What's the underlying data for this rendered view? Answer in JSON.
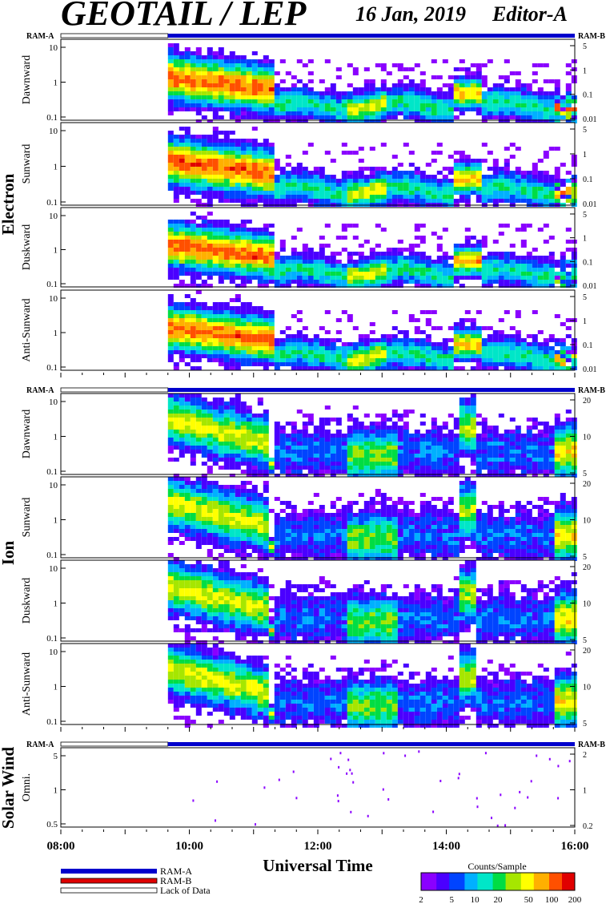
{
  "header": {
    "title": "GEOTAIL / LEP",
    "date": "16 Jan, 2019",
    "editor": "Editor-A"
  },
  "ram_labels": {
    "left": "RAM-A",
    "right": "RAM-B"
  },
  "groups": {
    "electron": "Electron",
    "ion": "Ion",
    "solar_wind": "Solar Wind"
  },
  "x_axis": {
    "title": "Universal Time",
    "ticks": [
      "08:00",
      "10:00",
      "12:00",
      "14:00",
      "16:00"
    ]
  },
  "legend": {
    "ram_a": "RAM-A",
    "ram_b": "RAM-B",
    "lack": "Lack of Data",
    "colorbar_title": "Counts/Sample",
    "colorbar_ticks": [
      "2",
      "5",
      "10",
      "20",
      "50",
      "100",
      "200"
    ]
  },
  "colors": {
    "ram_a": "#0000cc",
    "ram_b": "#dd0000",
    "colormap": [
      "#8a00ff",
      "#4a00ff",
      "#0044ff",
      "#00b0ff",
      "#00e6c8",
      "#00dd44",
      "#a6e600",
      "#ffff00",
      "#ffb000",
      "#ff5000",
      "#e00000"
    ]
  },
  "chart_data": {
    "type": "heatmap",
    "x_range": [
      "08:00",
      "16:00"
    ],
    "data_start": "09:40",
    "ram_a_interval": [
      "09:40",
      "16:00"
    ],
    "panels": [
      {
        "group": "Electron",
        "label": "Dawnward",
        "left_ticks": [
          "10",
          "1",
          "0.1"
        ],
        "right_ticks": [
          "5",
          "1",
          "0.1",
          "0.01"
        ],
        "ylog": true
      },
      {
        "group": "Electron",
        "label": "Sunward",
        "left_ticks": [
          "10",
          "1",
          "0.1"
        ],
        "right_ticks": [
          "5",
          "1",
          "0.1",
          "0.01"
        ],
        "ylog": true
      },
      {
        "group": "Electron",
        "label": "Duskward",
        "left_ticks": [
          "10",
          "1",
          "0.1"
        ],
        "right_ticks": [
          "5",
          "1",
          "0.1",
          "0.01"
        ],
        "ylog": true
      },
      {
        "group": "Electron",
        "label": "Anti-Sunward",
        "left_ticks": [
          "10",
          "1",
          "0.1"
        ],
        "right_ticks": [
          "5",
          "1",
          "0.1",
          "0.01"
        ],
        "ylog": true
      },
      {
        "group": "Ion",
        "label": "Dawnward",
        "left_ticks": [
          "10",
          "1",
          "0.1"
        ],
        "right_ticks": [
          "20",
          "10",
          "5"
        ],
        "ylog": true
      },
      {
        "group": "Ion",
        "label": "Sunward",
        "left_ticks": [
          "10",
          "1",
          "0.1"
        ],
        "right_ticks": [
          "20",
          "10",
          "5"
        ],
        "ylog": true
      },
      {
        "group": "Ion",
        "label": "Duskward",
        "left_ticks": [
          "10",
          "1",
          "0.1"
        ],
        "right_ticks": [
          "20",
          "10",
          "5"
        ],
        "ylog": true
      },
      {
        "group": "Ion",
        "label": "Anti-Sunward",
        "left_ticks": [
          "10",
          "1",
          "0.1"
        ],
        "right_ticks": [
          "20",
          "10",
          "5"
        ],
        "ylog": true
      },
      {
        "group": "Solar Wind",
        "label": "Omni.",
        "left_ticks": [
          "5",
          "1",
          "0.5"
        ],
        "right_ticks": [
          "2",
          "1",
          "0.2"
        ],
        "ylog": true
      }
    ]
  }
}
